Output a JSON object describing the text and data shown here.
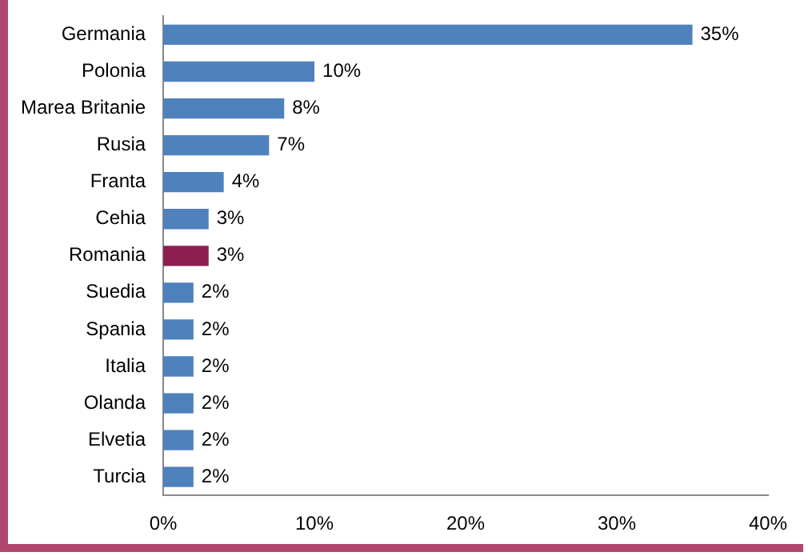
{
  "chart_data": {
    "type": "bar",
    "orientation": "horizontal",
    "categories": [
      "Germania",
      "Polonia",
      "Marea Britanie",
      "Rusia",
      "Franta",
      "Cehia",
      "Romania",
      "Suedia",
      "Spania",
      "Italia",
      "Olanda",
      "Elvetia",
      "Turcia"
    ],
    "values": [
      35,
      10,
      8,
      7,
      4,
      3,
      3,
      2,
      2,
      2,
      2,
      2,
      2
    ],
    "colors": [
      "#4f81bd",
      "#4f81bd",
      "#4f81bd",
      "#4f81bd",
      "#4f81bd",
      "#4f81bd",
      "#8b1e4f",
      "#4f81bd",
      "#4f81bd",
      "#4f81bd",
      "#4f81bd",
      "#4f81bd",
      "#4f81bd"
    ],
    "value_labels": [
      "35%",
      "10%",
      "8%",
      "7%",
      "4%",
      "3%",
      "3%",
      "2%",
      "2%",
      "2%",
      "2%",
      "2%",
      "2%"
    ],
    "xlim": [
      0,
      40
    ],
    "xticks": [
      {
        "value": 0,
        "label": "0%"
      },
      {
        "value": 10,
        "label": "10%"
      },
      {
        "value": 20,
        "label": "20%"
      },
      {
        "value": 30,
        "label": "30%"
      },
      {
        "value": 40,
        "label": "40%"
      }
    ],
    "grid": false,
    "legend": false
  }
}
